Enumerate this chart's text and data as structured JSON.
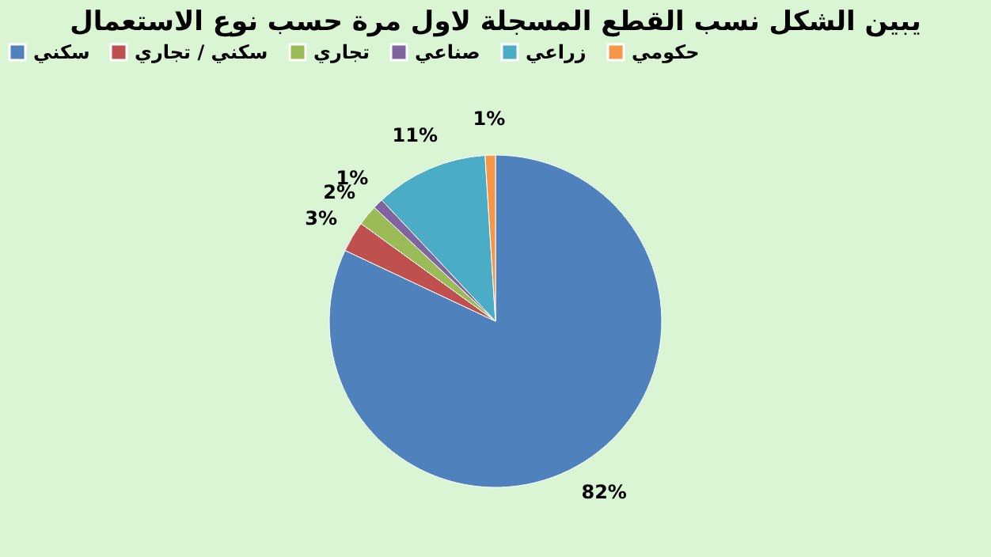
{
  "chart_data": {
    "type": "pie",
    "title": "يبين الشكل نسب القطع المسجلة لاول مرة حسب نوع الاستعمال",
    "categories": [
      "سكني",
      "سكني / تجاري",
      "تجاري",
      "صناعي",
      "زراعي",
      "حكومي"
    ],
    "values": [
      82,
      3,
      2,
      1,
      11,
      1
    ],
    "colors": [
      "#4f81bd",
      "#c0504d",
      "#9bbb59",
      "#8064a2",
      "#4bacc6",
      "#f79646"
    ],
    "value_labels": [
      "82%",
      "3%",
      "2%",
      "1%",
      "11%",
      "1%"
    ],
    "legend": "top"
  }
}
